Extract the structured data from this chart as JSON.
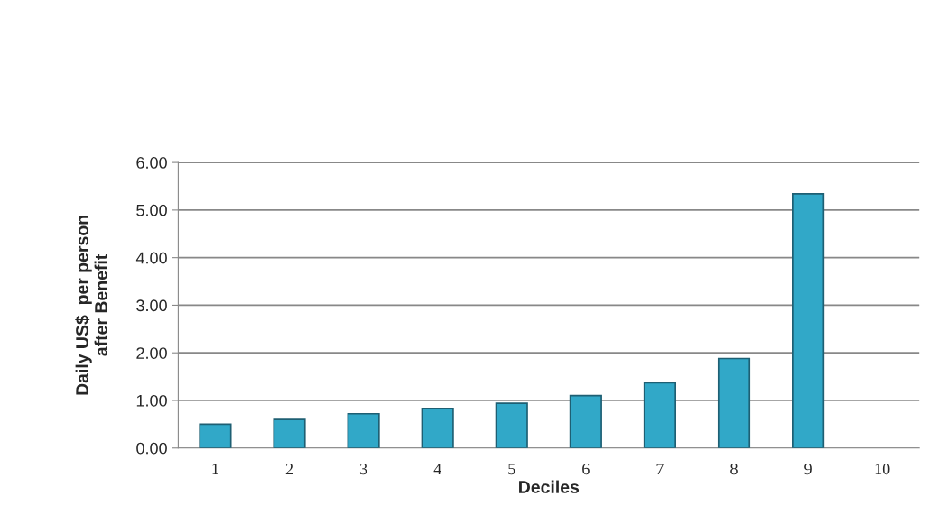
{
  "chart_data": {
    "type": "bar",
    "xlabel": "Deciles",
    "ylabel": "Daily US$  per person\nafter Benefit",
    "categories": [
      "1",
      "2",
      "3",
      "4",
      "5",
      "6",
      "7",
      "8",
      "9",
      "10"
    ],
    "values": [
      0.5,
      0.6,
      0.72,
      0.83,
      0.94,
      1.1,
      1.37,
      1.88,
      5.34,
      null
    ],
    "color": "#31a8c8",
    "ylim": [
      0,
      6
    ],
    "yticks": [
      {
        "value": 0,
        "label": "0.00"
      },
      {
        "value": 1,
        "label": "1.00"
      },
      {
        "value": 2,
        "label": "2.00"
      },
      {
        "value": 3,
        "label": "3.00"
      },
      {
        "value": 4,
        "label": "4.00"
      },
      {
        "value": 5,
        "label": "5.00"
      },
      {
        "value": 6,
        "label": "6.00"
      }
    ],
    "grid": "y"
  }
}
